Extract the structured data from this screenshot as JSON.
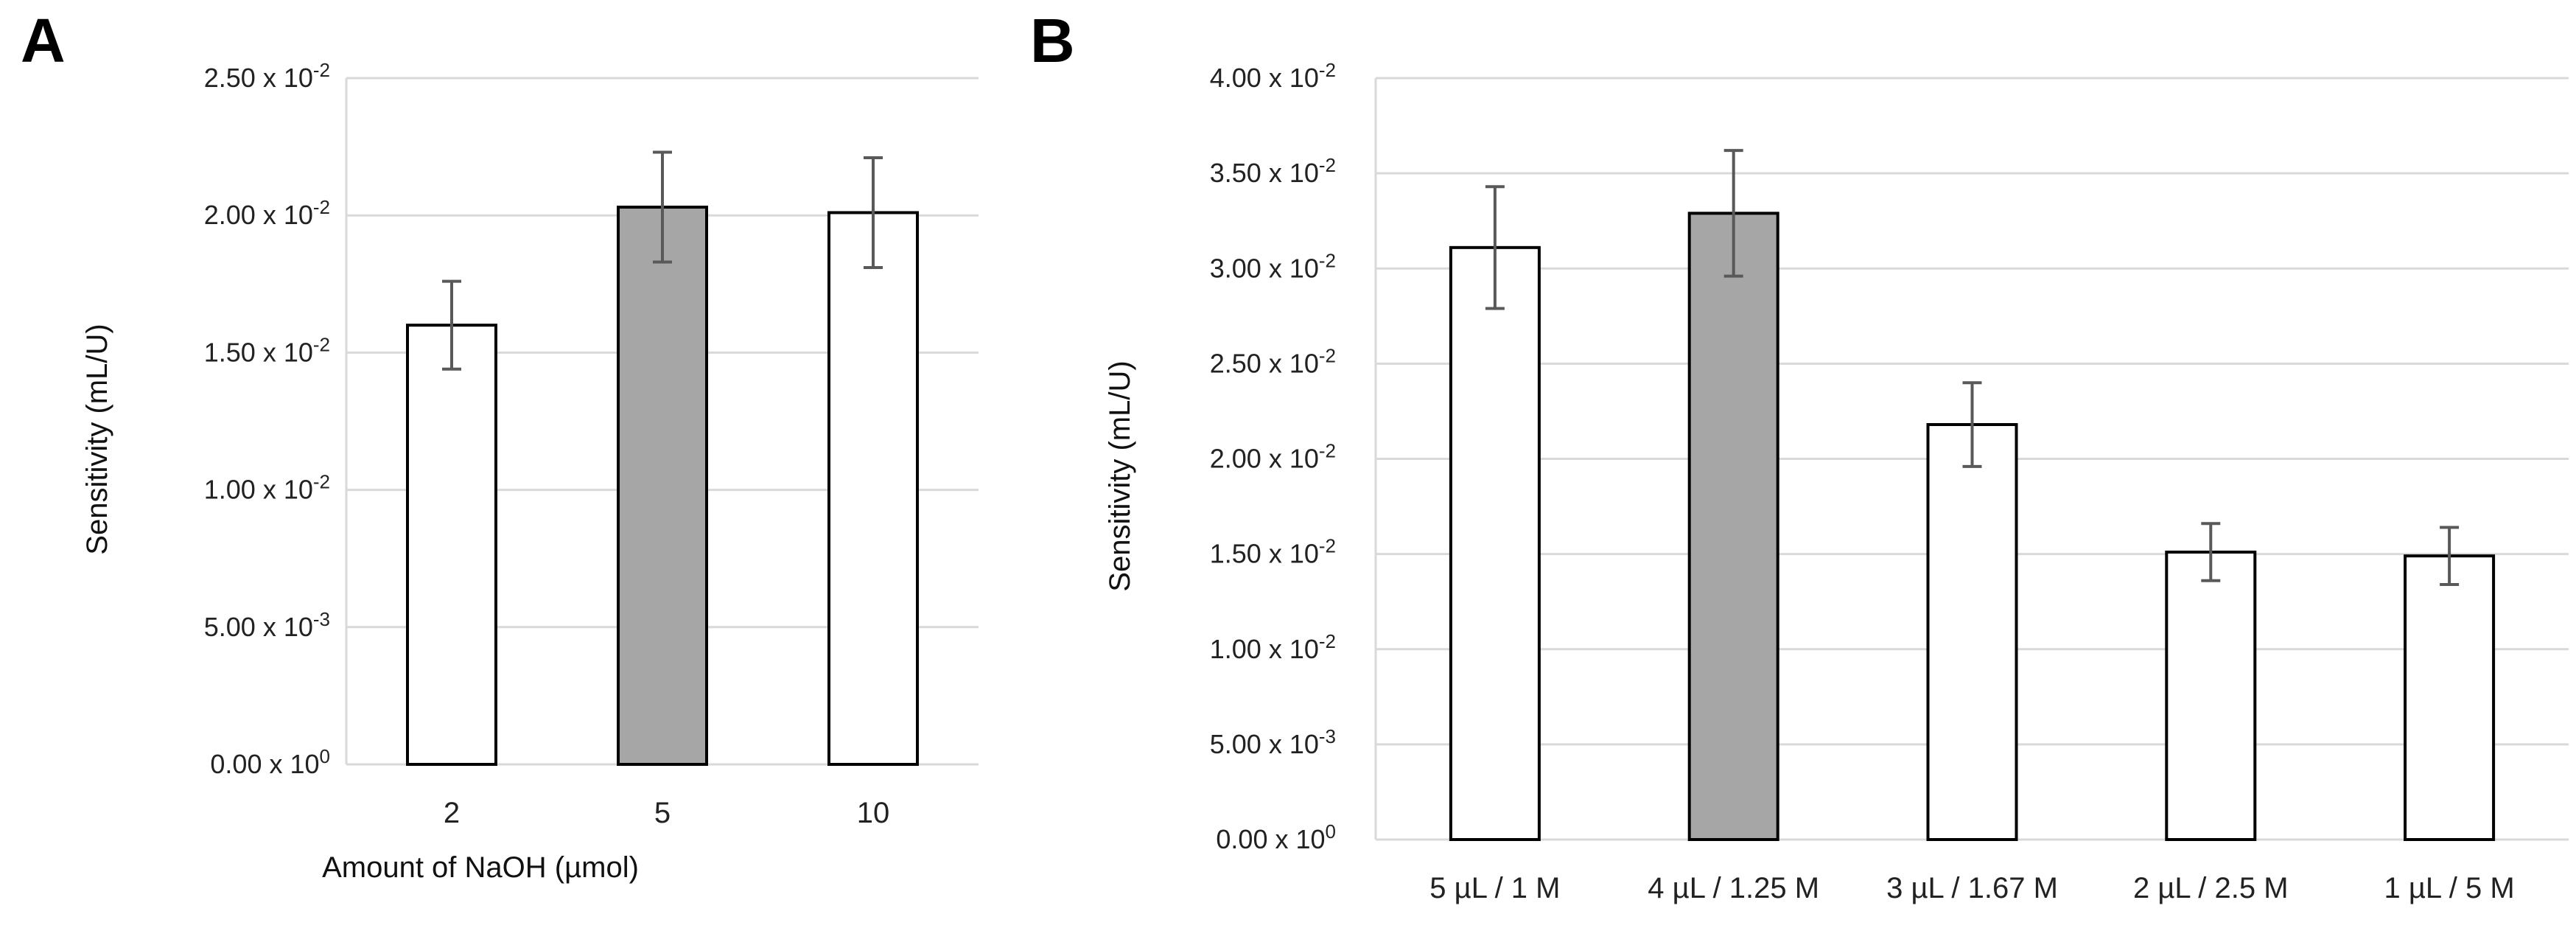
{
  "chart_data": [
    {
      "type": "bar",
      "panel": "A",
      "title": "",
      "xlabel": "Amount of NaOH (µmol)",
      "ylabel": "Sensitivity (mL/U)",
      "ylim": [
        0,
        0.025
      ],
      "yticks": [
        {
          "value": 0,
          "mantissa": "0.00 x 10",
          "exp": "0"
        },
        {
          "value": 0.005,
          "mantissa": "5.00 x 10",
          "exp": "-3"
        },
        {
          "value": 0.01,
          "mantissa": "1.00 x 10",
          "exp": "-2"
        },
        {
          "value": 0.015,
          "mantissa": "1.50 x 10",
          "exp": "-2"
        },
        {
          "value": 0.02,
          "mantissa": "2.00 x 10",
          "exp": "-2"
        },
        {
          "value": 0.025,
          "mantissa": "2.50 x 10",
          "exp": "-2"
        }
      ],
      "categories": [
        "2",
        "5",
        "10"
      ],
      "values": [
        0.016,
        0.0203,
        0.0201
      ],
      "errors": [
        0.0016,
        0.002,
        0.002
      ],
      "bar_colors": [
        "#ffffff",
        "#a6a6a6",
        "#ffffff"
      ],
      "grid": true
    },
    {
      "type": "bar",
      "panel": "B",
      "title": "",
      "xlabel": "",
      "ylabel": "Sensitivity (mL/U)",
      "ylim": [
        0,
        0.04
      ],
      "yticks": [
        {
          "value": 0,
          "mantissa": "0.00 x 10",
          "exp": "0"
        },
        {
          "value": 0.005,
          "mantissa": "5.00 x 10",
          "exp": "-3"
        },
        {
          "value": 0.01,
          "mantissa": "1.00 x 10",
          "exp": "-2"
        },
        {
          "value": 0.015,
          "mantissa": "1.50 x 10",
          "exp": "-2"
        },
        {
          "value": 0.02,
          "mantissa": "2.00 x 10",
          "exp": "-2"
        },
        {
          "value": 0.025,
          "mantissa": "2.50 x 10",
          "exp": "-2"
        },
        {
          "value": 0.03,
          "mantissa": "3.00 x 10",
          "exp": "-2"
        },
        {
          "value": 0.035,
          "mantissa": "3.50 x 10",
          "exp": "-2"
        },
        {
          "value": 0.04,
          "mantissa": "4.00 x 10",
          "exp": "-2"
        }
      ],
      "categories": [
        "5 µL / 1 M",
        "4 µL / 1.25 M",
        "3 µL / 1.67 M",
        "2 µL / 2.5 M",
        "1 µL / 5 M"
      ],
      "values": [
        0.0311,
        0.0329,
        0.0218,
        0.0151,
        0.0149
      ],
      "errors": [
        0.0032,
        0.0033,
        0.0022,
        0.0015,
        0.0015
      ],
      "bar_colors": [
        "#ffffff",
        "#a6a6a6",
        "#ffffff",
        "#ffffff",
        "#ffffff"
      ],
      "grid": true
    }
  ]
}
